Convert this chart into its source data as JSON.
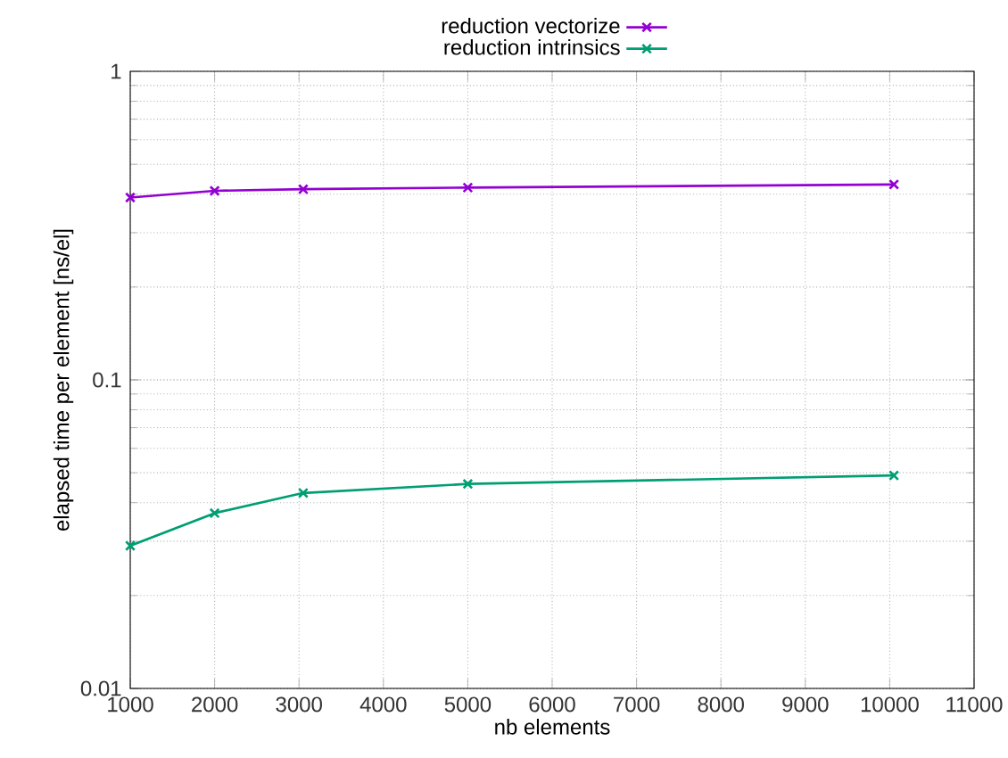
{
  "chart_data": {
    "type": "line",
    "xlabel": "nb elements",
    "ylabel": "elapsed time per element [ns/el]",
    "x": [
      1000,
      2000,
      3050,
      5000,
      10050
    ],
    "series": [
      {
        "name": "reduction vectorize",
        "color": "#9400d3",
        "values": [
          0.39,
          0.41,
          0.415,
          0.42,
          0.43
        ]
      },
      {
        "name": "reduction intrinsics",
        "color": "#009e73",
        "values": [
          0.029,
          0.037,
          0.043,
          0.046,
          0.049
        ]
      }
    ],
    "xlim": [
      1000,
      11000
    ],
    "xticks": [
      1000,
      2000,
      3000,
      4000,
      5000,
      6000,
      7000,
      8000,
      9000,
      10000,
      11000
    ],
    "ylim": [
      0.01,
      1
    ],
    "yticks": [
      0.01,
      0.1,
      1
    ],
    "log": "y",
    "grid": true,
    "legend": "top",
    "marker": "cross",
    "line_style": "solid"
  }
}
